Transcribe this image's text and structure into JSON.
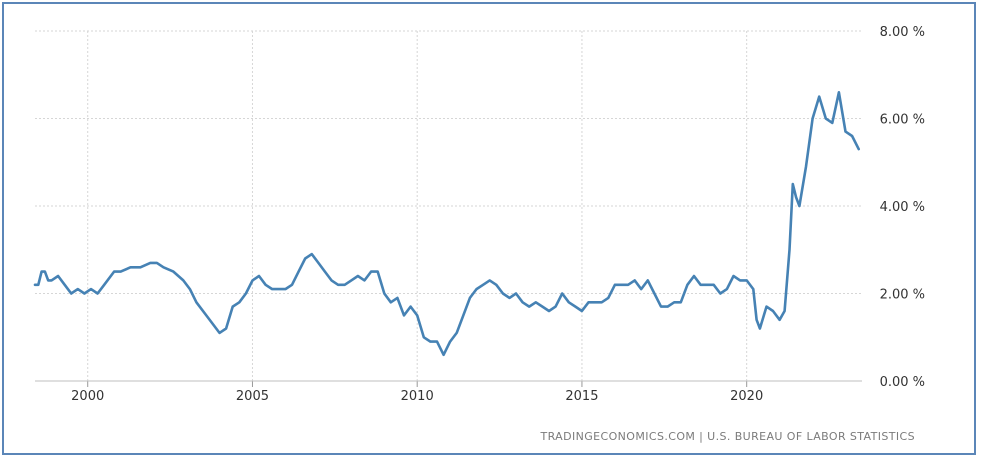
{
  "chart_data": {
    "type": "line",
    "title": "",
    "xlabel": "",
    "ylabel": "",
    "ylim": [
      0,
      8
    ],
    "xlim": [
      1998.4,
      2023.5
    ],
    "y_ticks": [
      {
        "value": 0,
        "label": "0.00 %"
      },
      {
        "value": 2,
        "label": "2.00 %"
      },
      {
        "value": 4,
        "label": "4.00 %"
      },
      {
        "value": 6,
        "label": "6.00 %"
      },
      {
        "value": 8,
        "label": "8.00 %"
      }
    ],
    "x_ticks": [
      {
        "value": 2000,
        "label": "2000"
      },
      {
        "value": 2005,
        "label": "2005"
      },
      {
        "value": 2010,
        "label": "2010"
      },
      {
        "value": 2015,
        "label": "2015"
      },
      {
        "value": 2020,
        "label": "2020"
      }
    ],
    "grid": true,
    "series": [
      {
        "color": "#4682b4",
        "points": [
          [
            1998.4,
            2.2
          ],
          [
            1998.5,
            2.2
          ],
          [
            1998.6,
            2.5
          ],
          [
            1998.7,
            2.5
          ],
          [
            1998.8,
            2.3
          ],
          [
            1998.9,
            2.3
          ],
          [
            1999.1,
            2.4
          ],
          [
            1999.3,
            2.2
          ],
          [
            1999.5,
            2.0
          ],
          [
            1999.7,
            2.1
          ],
          [
            1999.9,
            2.0
          ],
          [
            2000.1,
            2.1
          ],
          [
            2000.3,
            2.0
          ],
          [
            2000.5,
            2.2
          ],
          [
            2000.8,
            2.5
          ],
          [
            2001.0,
            2.5
          ],
          [
            2001.3,
            2.6
          ],
          [
            2001.6,
            2.6
          ],
          [
            2001.9,
            2.7
          ],
          [
            2002.1,
            2.7
          ],
          [
            2002.3,
            2.6
          ],
          [
            2002.6,
            2.5
          ],
          [
            2002.9,
            2.3
          ],
          [
            2003.1,
            2.1
          ],
          [
            2003.3,
            1.8
          ],
          [
            2003.6,
            1.5
          ],
          [
            2003.8,
            1.3
          ],
          [
            2004.0,
            1.1
          ],
          [
            2004.2,
            1.2
          ],
          [
            2004.4,
            1.7
          ],
          [
            2004.6,
            1.8
          ],
          [
            2004.8,
            2.0
          ],
          [
            2005.0,
            2.3
          ],
          [
            2005.2,
            2.4
          ],
          [
            2005.4,
            2.2
          ],
          [
            2005.6,
            2.1
          ],
          [
            2005.8,
            2.1
          ],
          [
            2006.0,
            2.1
          ],
          [
            2006.2,
            2.2
          ],
          [
            2006.4,
            2.5
          ],
          [
            2006.6,
            2.8
          ],
          [
            2006.8,
            2.9
          ],
          [
            2007.0,
            2.7
          ],
          [
            2007.2,
            2.5
          ],
          [
            2007.4,
            2.3
          ],
          [
            2007.6,
            2.2
          ],
          [
            2007.8,
            2.2
          ],
          [
            2008.0,
            2.3
          ],
          [
            2008.2,
            2.4
          ],
          [
            2008.4,
            2.3
          ],
          [
            2008.6,
            2.5
          ],
          [
            2008.8,
            2.5
          ],
          [
            2009.0,
            2.0
          ],
          [
            2009.2,
            1.8
          ],
          [
            2009.4,
            1.9
          ],
          [
            2009.6,
            1.5
          ],
          [
            2009.8,
            1.7
          ],
          [
            2010.0,
            1.5
          ],
          [
            2010.2,
            1.0
          ],
          [
            2010.4,
            0.9
          ],
          [
            2010.6,
            0.9
          ],
          [
            2010.8,
            0.6
          ],
          [
            2011.0,
            0.9
          ],
          [
            2011.2,
            1.1
          ],
          [
            2011.4,
            1.5
          ],
          [
            2011.6,
            1.9
          ],
          [
            2011.8,
            2.1
          ],
          [
            2012.0,
            2.2
          ],
          [
            2012.2,
            2.3
          ],
          [
            2012.4,
            2.2
          ],
          [
            2012.6,
            2.0
          ],
          [
            2012.8,
            1.9
          ],
          [
            2013.0,
            2.0
          ],
          [
            2013.2,
            1.8
          ],
          [
            2013.4,
            1.7
          ],
          [
            2013.6,
            1.8
          ],
          [
            2013.8,
            1.7
          ],
          [
            2014.0,
            1.6
          ],
          [
            2014.2,
            1.7
          ],
          [
            2014.4,
            2.0
          ],
          [
            2014.6,
            1.8
          ],
          [
            2014.8,
            1.7
          ],
          [
            2015.0,
            1.6
          ],
          [
            2015.2,
            1.8
          ],
          [
            2015.4,
            1.8
          ],
          [
            2015.6,
            1.8
          ],
          [
            2015.8,
            1.9
          ],
          [
            2016.0,
            2.2
          ],
          [
            2016.2,
            2.2
          ],
          [
            2016.4,
            2.2
          ],
          [
            2016.6,
            2.3
          ],
          [
            2016.8,
            2.1
          ],
          [
            2017.0,
            2.3
          ],
          [
            2017.2,
            2.0
          ],
          [
            2017.4,
            1.7
          ],
          [
            2017.6,
            1.7
          ],
          [
            2017.8,
            1.8
          ],
          [
            2018.0,
            1.8
          ],
          [
            2018.2,
            2.2
          ],
          [
            2018.4,
            2.4
          ],
          [
            2018.6,
            2.2
          ],
          [
            2018.8,
            2.2
          ],
          [
            2019.0,
            2.2
          ],
          [
            2019.2,
            2.0
          ],
          [
            2019.4,
            2.1
          ],
          [
            2019.6,
            2.4
          ],
          [
            2019.8,
            2.3
          ],
          [
            2020.0,
            2.3
          ],
          [
            2020.2,
            2.1
          ],
          [
            2020.3,
            1.4
          ],
          [
            2020.4,
            1.2
          ],
          [
            2020.6,
            1.7
          ],
          [
            2020.8,
            1.6
          ],
          [
            2021.0,
            1.4
          ],
          [
            2021.15,
            1.6
          ],
          [
            2021.3,
            3.0
          ],
          [
            2021.4,
            4.5
          ],
          [
            2021.5,
            4.2
          ],
          [
            2021.6,
            4.0
          ],
          [
            2021.8,
            4.9
          ],
          [
            2022.0,
            6.0
          ],
          [
            2022.2,
            6.5
          ],
          [
            2022.4,
            6.0
          ],
          [
            2022.6,
            5.9
          ],
          [
            2022.8,
            6.6
          ],
          [
            2023.0,
            5.7
          ],
          [
            2023.2,
            5.6
          ],
          [
            2023.4,
            5.3
          ]
        ]
      }
    ],
    "source": "TRADINGECONOMICS.COM  |  U.S. BUREAU OF LABOR STATISTICS"
  }
}
